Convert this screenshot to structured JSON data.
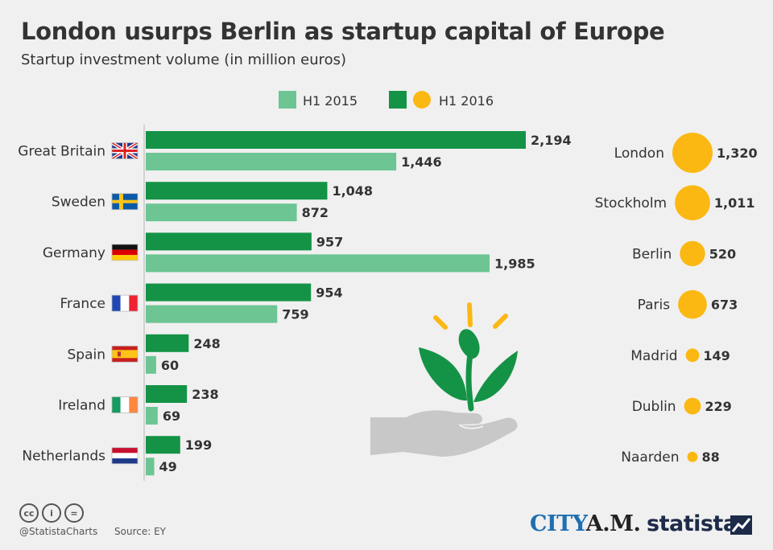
{
  "header": {
    "title": "London usurps Berlin as startup capital of Europe",
    "subtitle": "Startup investment volume (in million euros)"
  },
  "legend": {
    "item_2015": "H1 2015",
    "item_2016": "H1 2016"
  },
  "colors": {
    "h1_2016": "#149346",
    "h1_2015": "#6cc592",
    "city_bubble": "#fbb813",
    "text": "#333333",
    "axis": "#c8c8c8"
  },
  "chart_data": [
    {
      "type": "bar",
      "orientation": "horizontal",
      "categories": [
        "Great Britain",
        "Sweden",
        "Germany",
        "France",
        "Spain",
        "Ireland",
        "Netherlands"
      ],
      "series": [
        {
          "name": "H1 2016",
          "values": [
            2194,
            1048,
            957,
            954,
            248,
            238,
            199
          ],
          "labels": [
            "2,194",
            "1,048",
            "957",
            "954",
            "248",
            "238",
            "199"
          ]
        },
        {
          "name": "H1 2015",
          "values": [
            1446,
            872,
            1985,
            759,
            60,
            69,
            49
          ],
          "labels": [
            "1,446",
            "872",
            "1,985",
            "759",
            "60",
            "69",
            "49"
          ]
        }
      ]
    },
    {
      "type": "scatter",
      "subtype": "bubble",
      "series": [
        {
          "name": "H1 2016",
          "categories": [
            "London",
            "Stockholm",
            "Berlin",
            "Paris",
            "Madrid",
            "Dublin",
            "Naarden"
          ],
          "values": [
            1320,
            1011,
            520,
            673,
            149,
            229,
            88
          ],
          "labels": [
            "1,320",
            "1,011",
            "520",
            "673",
            "149",
            "229",
            "88"
          ]
        }
      ]
    }
  ],
  "flags": [
    "gb-flag-icon",
    "se-flag-icon",
    "de-flag-icon",
    "fr-flag-icon",
    "es-flag-icon",
    "ie-flag-icon",
    "nl-flag-icon"
  ],
  "illustration": "seedling-in-hand-icon",
  "footer": {
    "handle": "@StatistaCharts",
    "source": "Source: EY",
    "cc_icons": [
      "cc",
      "i",
      "="
    ],
    "brand_1a": "CITY",
    "brand_1b": "A.M.",
    "brand_2": "statista"
  }
}
